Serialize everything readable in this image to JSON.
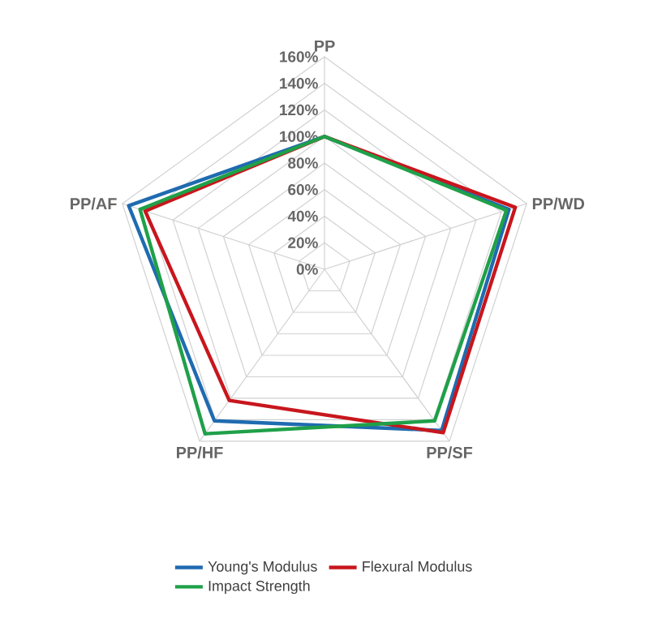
{
  "chart_data": {
    "type": "radar",
    "categories": [
      "PP",
      "PP/WD",
      "PP/SF",
      "PP/HF",
      "PP/AF"
    ],
    "ylim": [
      0,
      160
    ],
    "yticks": [
      {
        "value": 0,
        "label": "0%"
      },
      {
        "value": 20,
        "label": "20%"
      },
      {
        "value": 40,
        "label": "40%"
      },
      {
        "value": 60,
        "label": "60%"
      },
      {
        "value": 80,
        "label": "80%"
      },
      {
        "value": 100,
        "label": "100%"
      },
      {
        "value": 120,
        "label": "120%"
      },
      {
        "value": 140,
        "label": "140%"
      },
      {
        "value": 160,
        "label": "160%"
      }
    ],
    "grid": true,
    "legend": "bottom",
    "series": [
      {
        "name": "Young's Modulus",
        "color": "#1f6bb0",
        "values": [
          100,
          146,
          150,
          141,
          155
        ]
      },
      {
        "name": "Flexural Modulus",
        "color": "#c8161d",
        "values": [
          100,
          151,
          152,
          122,
          142
        ]
      },
      {
        "name": "Impact Strength",
        "color": "#1fa049",
        "values": [
          100,
          144,
          141,
          153,
          146
        ]
      }
    ]
  }
}
